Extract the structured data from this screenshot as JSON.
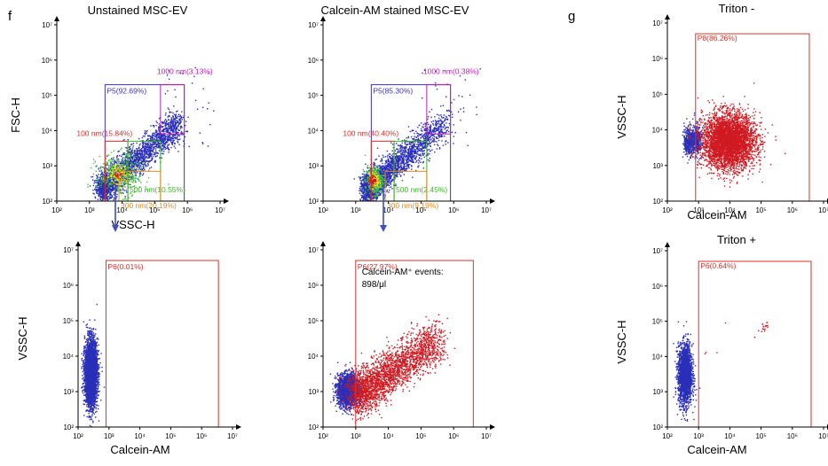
{
  "panel_letters": {
    "f": "f",
    "g": "g"
  },
  "chart_data": [
    {
      "id": "A",
      "type": "scatter",
      "title": "Unstained MSC-EV",
      "xlabel": "VSSC-H",
      "ylabel": "FSC-H",
      "scale": "log",
      "xlim": [
        100,
        10000000
      ],
      "ylim": [
        100,
        10000000
      ],
      "gates": [
        {
          "label": "P5(92.69%)",
          "color": "#3a2fd0",
          "x": [
            3000,
            800000
          ],
          "y": [
            100,
            200000
          ]
        },
        {
          "label": "1000 nm(3.13%)",
          "color": "#c21bb8",
          "x": [
            150000,
            800000
          ],
          "y": [
            8000,
            200000
          ]
        },
        {
          "label": "100 nm(15.84%)",
          "color": "#d9302a",
          "x": [
            3000,
            15000
          ],
          "y": [
            100,
            5000
          ]
        },
        {
          "label": "500 nm(10.55%)",
          "color": "#34b81e",
          "x": [
            15000,
            150000
          ],
          "y": [
            100,
            5000
          ]
        },
        {
          "label": "300 nm(20.19%)",
          "color": "#e58a22",
          "x": [
            8000,
            150000
          ],
          "y": [
            100,
            700
          ]
        }
      ]
    },
    {
      "id": "B",
      "type": "scatter",
      "title": "Calcein-AM stained MSC-EV",
      "xlabel": "",
      "ylabel": "",
      "scale": "log",
      "xlim": [
        100,
        10000000
      ],
      "ylim": [
        100,
        10000000
      ],
      "gates": [
        {
          "label": "P5(85.30%)",
          "color": "#3a2fd0",
          "x": [
            3000,
            800000
          ],
          "y": [
            100,
            200000
          ]
        },
        {
          "label": "1000 nm(0.38%)",
          "color": "#c21bb8",
          "x": [
            150000,
            800000
          ],
          "y": [
            8000,
            200000
          ]
        },
        {
          "label": "100 nm(40.40%)",
          "color": "#d9302a",
          "x": [
            3000,
            15000
          ],
          "y": [
            100,
            5000
          ]
        },
        {
          "label": "500 nm(2.45%)",
          "color": "#34b81e",
          "x": [
            15000,
            150000
          ],
          "y": [
            100,
            5000
          ]
        },
        {
          "label": "300 nm(9.19%)",
          "color": "#e58a22",
          "x": [
            8000,
            150000
          ],
          "y": [
            100,
            700
          ]
        }
      ]
    },
    {
      "id": "C",
      "type": "scatter",
      "title": "",
      "xlabel": "Calcein-AM",
      "ylabel": "VSSC-H",
      "scale": "log",
      "xlim": [
        100,
        10000000
      ],
      "ylim": [
        100,
        10000000
      ],
      "gates": [
        {
          "label": "P6(0.01%)",
          "color": "#d9302a",
          "x": [
            800,
            3500000
          ],
          "y": [
            100,
            5000000
          ]
        }
      ]
    },
    {
      "id": "D",
      "type": "scatter",
      "title": "",
      "xlabel": "",
      "ylabel": "",
      "scale": "log",
      "xlim": [
        100,
        10000000
      ],
      "ylim": [
        100,
        10000000
      ],
      "gates": [
        {
          "label": "P6(27.97%)",
          "color": "#d9302a",
          "x": [
            1000,
            4000000
          ],
          "y": [
            100,
            5000000
          ]
        }
      ],
      "annotation": {
        "line1": "Calcein-AM⁺ events:",
        "line2": "898/μl"
      }
    },
    {
      "id": "E",
      "type": "scatter",
      "title": "Triton -",
      "xlabel": "Calcein-AM",
      "ylabel": "VSSC-H",
      "scale": "log",
      "xlim": [
        100,
        10000000
      ],
      "ylim": [
        100,
        10000000
      ],
      "gates": [
        {
          "label": "P8(86.26%)",
          "color": "#d9302a",
          "x": [
            800,
            3500000
          ],
          "y": [
            100,
            5000000
          ]
        }
      ]
    },
    {
      "id": "F",
      "type": "scatter",
      "title": "Triton +",
      "xlabel": "Calcein-AM",
      "ylabel": "VSSC-H",
      "scale": "log",
      "xlim": [
        100,
        10000000
      ],
      "ylim": [
        100,
        10000000
      ],
      "gates": [
        {
          "label": "P6(0.64%)",
          "color": "#d9302a",
          "x": [
            1000,
            4000000
          ],
          "y": [
            100,
            5000000
          ]
        }
      ]
    }
  ],
  "colors": {
    "blue": "#2a2fb8",
    "red": "#d01a22",
    "green": "#3cc43c",
    "yellow": "#f2e021",
    "arrow": "#3a4fc8"
  }
}
